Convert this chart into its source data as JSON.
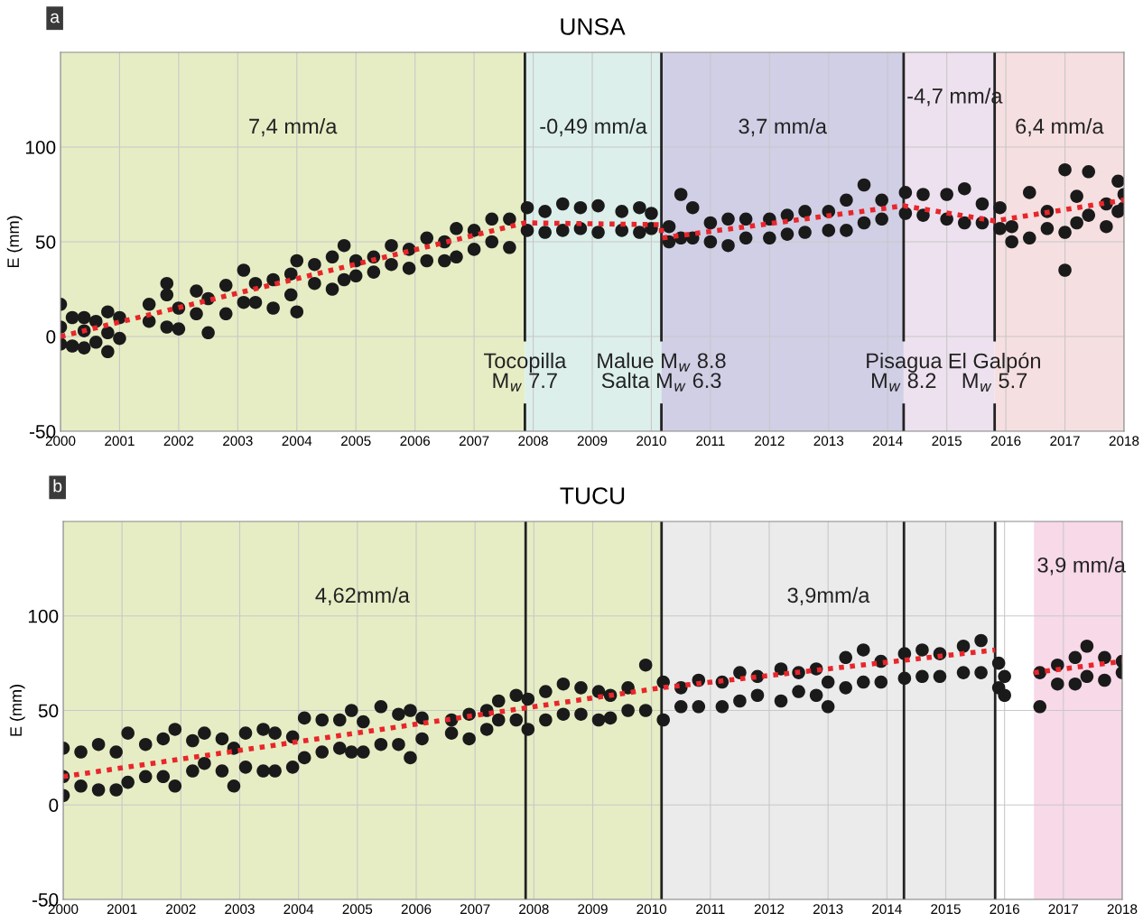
{
  "chart_data": [
    {
      "type": "scatter",
      "title": "UNSA",
      "ylabel": "E (mm)",
      "xlim": [
        2000,
        2018
      ],
      "ylim": [
        -50,
        150
      ],
      "xticks": [
        2000,
        2001,
        2002,
        2003,
        2004,
        2005,
        2006,
        2007,
        2008,
        2009,
        2010,
        2011,
        2012,
        2013,
        2014,
        2015,
        2016,
        2017,
        2018
      ],
      "yticks": [
        -50,
        0,
        50,
        100
      ],
      "grid": true,
      "series": [
        {
          "marker": "circle",
          "color": "#1a1a1a",
          "x": [
            2000.0,
            2000.0,
            2000.0,
            2000.2,
            2000.2,
            2000.4,
            2000.4,
            2000.4,
            2000.6,
            2000.6,
            2000.8,
            2000.8,
            2000.8,
            2001.0,
            2001.0,
            2001.5,
            2001.5,
            2001.8,
            2001.8,
            2001.8,
            2002.0,
            2002.0,
            2002.3,
            2002.3,
            2002.5,
            2002.5,
            2002.8,
            2002.8,
            2003.1,
            2003.1,
            2003.3,
            2003.3,
            2003.6,
            2003.6,
            2003.9,
            2003.9,
            2004.0,
            2004.0,
            2004.3,
            2004.3,
            2004.6,
            2004.6,
            2004.8,
            2004.8,
            2005.0,
            2005.0,
            2005.3,
            2005.3,
            2005.6,
            2005.6,
            2005.9,
            2005.9,
            2006.2,
            2006.2,
            2006.5,
            2006.5,
            2006.7,
            2006.7,
            2007.0,
            2007.0,
            2007.3,
            2007.3,
            2007.6,
            2007.6,
            2007.9,
            2007.9,
            2008.2,
            2008.2,
            2008.5,
            2008.5,
            2008.8,
            2008.8,
            2009.1,
            2009.1,
            2009.5,
            2009.5,
            2009.8,
            2009.8,
            2010.0,
            2010.0,
            2010.3,
            2010.3,
            2010.5,
            2010.5,
            2010.7,
            2010.7,
            2011.0,
            2011.0,
            2011.3,
            2011.3,
            2011.6,
            2011.6,
            2012.0,
            2012.0,
            2012.3,
            2012.3,
            2012.6,
            2012.6,
            2013.0,
            2013.0,
            2013.3,
            2013.3,
            2013.6,
            2013.6,
            2013.9,
            2013.9,
            2014.3,
            2014.3,
            2014.6,
            2014.6,
            2015.0,
            2015.0,
            2015.3,
            2015.3,
            2015.6,
            2015.6,
            2015.9,
            2015.9,
            2016.1,
            2016.1,
            2016.4,
            2016.4,
            2016.7,
            2016.7,
            2017.0,
            2017.0,
            2017.0,
            2017.2,
            2017.2,
            2017.4,
            2017.4,
            2017.7,
            2017.7,
            2017.9,
            2017.9,
            2018.0,
            2018.0
          ],
          "values": [
            5,
            17,
            -4,
            10,
            -5,
            3,
            10,
            -6,
            8,
            -3,
            13,
            -8,
            2,
            10,
            -1,
            17,
            8,
            22,
            5,
            28,
            15,
            4,
            24,
            12,
            20,
            2,
            27,
            12,
            35,
            18,
            28,
            18,
            30,
            15,
            33,
            22,
            40,
            13,
            38,
            28,
            42,
            25,
            48,
            30,
            40,
            32,
            42,
            34,
            48,
            38,
            46,
            36,
            52,
            40,
            50,
            40,
            57,
            42,
            56,
            46,
            62,
            50,
            62,
            47,
            68,
            56,
            66,
            55,
            70,
            56,
            68,
            57,
            69,
            55,
            66,
            56,
            68,
            55,
            65,
            57,
            58,
            50,
            75,
            52,
            68,
            52,
            60,
            50,
            62,
            48,
            62,
            52,
            62,
            52,
            64,
            54,
            66,
            55,
            66,
            56,
            72,
            56,
            80,
            60,
            72,
            62,
            76,
            65,
            75,
            64,
            75,
            62,
            78,
            60,
            70,
            60,
            68,
            57,
            58,
            50,
            76,
            52,
            66,
            57,
            88,
            55,
            35,
            74,
            60,
            87,
            64,
            70,
            58,
            82,
            66,
            75,
            68
          ]
        },
        {
          "type": "line",
          "line_style": "dotted",
          "color": "#e8262b",
          "x": [
            2000,
            2007.86,
            2010.17,
            2010.17,
            2014.27,
            2015.81,
            2018
          ],
          "values": [
            0,
            60,
            59,
            52,
            69,
            61,
            72
          ]
        }
      ],
      "bands": [
        {
          "axis": "x",
          "from": 2000,
          "to": 2007.86,
          "color": "#e6edc4",
          "label": "7,4 mm/a"
        },
        {
          "axis": "x",
          "from": 2007.86,
          "to": 2010.17,
          "color": "#dcefeb",
          "label": "-0,49 mm/a"
        },
        {
          "axis": "x",
          "from": 2010.17,
          "to": 2014.27,
          "color": "#d0cfe6",
          "label": "3,7 mm/a"
        },
        {
          "axis": "x",
          "from": 2014.27,
          "to": 2015.81,
          "color": "#ede1ef",
          "label": "-4,7 mm/a"
        },
        {
          "axis": "x",
          "from": 2015.81,
          "to": 2018,
          "color": "#f6dfe0",
          "label": "6,4 mm/a"
        }
      ],
      "ref_lines": [
        {
          "axis": "x",
          "value": 2007.86,
          "label": "Tocopilla\nM$_{w}$ 7.7",
          "color": "#222222"
        },
        {
          "axis": "x",
          "value": 2010.17,
          "label": "Malue M$_{w}$ 8.8\nSalta M$_{w}$ 6.3",
          "color": "#222222"
        },
        {
          "axis": "x",
          "value": 2014.27,
          "label": "Pisagua\nM$_{w}$ 8.2",
          "color": "#222222"
        },
        {
          "axis": "x",
          "value": 2015.81,
          "label": "El Galpón\nM$_{w}$ 5.7",
          "color": "#222222"
        }
      ],
      "annotations": [
        "a"
      ]
    },
    {
      "type": "scatter",
      "title": "TUCU",
      "ylabel": "E (mm)",
      "xlim": [
        2000,
        2018
      ],
      "ylim": [
        -50,
        150
      ],
      "xticks": [
        2000,
        2001,
        2002,
        2003,
        2004,
        2005,
        2006,
        2007,
        2008,
        2009,
        2010,
        2011,
        2012,
        2013,
        2014,
        2015,
        2016,
        2017,
        2018
      ],
      "yticks": [
        -50,
        0,
        50,
        100
      ],
      "grid": true,
      "series": [
        {
          "marker": "circle",
          "color": "#1a1a1a",
          "x": [
            2000.0,
            2000.0,
            2000.0,
            2000.3,
            2000.3,
            2000.6,
            2000.6,
            2000.9,
            2000.9,
            2001.1,
            2001.1,
            2001.4,
            2001.4,
            2001.7,
            2001.7,
            2001.9,
            2001.9,
            2002.2,
            2002.2,
            2002.4,
            2002.4,
            2002.7,
            2002.7,
            2002.9,
            2002.9,
            2003.1,
            2003.1,
            2003.4,
            2003.4,
            2003.6,
            2003.6,
            2003.9,
            2003.9,
            2004.1,
            2004.1,
            2004.4,
            2004.4,
            2004.7,
            2004.7,
            2004.9,
            2004.9,
            2005.1,
            2005.1,
            2005.4,
            2005.4,
            2005.7,
            2005.7,
            2005.9,
            2005.9,
            2006.1,
            2006.1,
            2006.6,
            2006.6,
            2006.9,
            2006.9,
            2007.2,
            2007.2,
            2007.4,
            2007.4,
            2007.7,
            2007.7,
            2007.9,
            2007.9,
            2008.2,
            2008.2,
            2008.5,
            2008.5,
            2008.8,
            2008.8,
            2009.1,
            2009.1,
            2009.3,
            2009.3,
            2009.6,
            2009.6,
            2009.9,
            2009.9,
            2010.2,
            2010.2,
            2010.5,
            2010.5,
            2010.8,
            2010.8,
            2011.2,
            2011.2,
            2011.5,
            2011.5,
            2011.8,
            2011.8,
            2012.2,
            2012.2,
            2012.5,
            2012.5,
            2012.8,
            2012.8,
            2013.0,
            2013.0,
            2013.3,
            2013.3,
            2013.6,
            2013.6,
            2013.9,
            2013.9,
            2014.3,
            2014.3,
            2014.6,
            2014.6,
            2014.9,
            2014.9,
            2015.3,
            2015.3,
            2015.6,
            2015.6,
            2015.9,
            2015.9,
            2016.0,
            2016.0,
            2016.6,
            2016.6,
            2016.9,
            2016.9,
            2017.2,
            2017.2,
            2017.4,
            2017.4,
            2017.7,
            2017.7,
            2018.0,
            2018.0
          ],
          "values": [
            5,
            30,
            15,
            28,
            10,
            32,
            8,
            28,
            8,
            38,
            12,
            32,
            15,
            35,
            15,
            40,
            10,
            34,
            18,
            38,
            22,
            35,
            18,
            30,
            10,
            38,
            20,
            40,
            18,
            38,
            18,
            36,
            20,
            46,
            25,
            45,
            28,
            45,
            30,
            50,
            28,
            44,
            28,
            52,
            32,
            48,
            32,
            50,
            25,
            46,
            35,
            45,
            38,
            48,
            35,
            50,
            40,
            55,
            45,
            58,
            45,
            56,
            40,
            60,
            45,
            64,
            48,
            62,
            48,
            60,
            45,
            58,
            46,
            62,
            50,
            74,
            50,
            65,
            45,
            62,
            52,
            66,
            52,
            65,
            52,
            70,
            55,
            68,
            58,
            72,
            55,
            70,
            60,
            72,
            58,
            65,
            52,
            78,
            62,
            82,
            65,
            76,
            65,
            80,
            67,
            82,
            68,
            80,
            68,
            84,
            70,
            87,
            70,
            75,
            62,
            68,
            58,
            70,
            52,
            74,
            64,
            78,
            64,
            84,
            68,
            78,
            66,
            76,
            70
          ]
        },
        {
          "type": "line",
          "line_style": "dotted",
          "color": "#e8262b",
          "x": [
            2000,
            2010.17,
            2015.84
          ],
          "values": [
            15,
            62,
            82
          ]
        },
        {
          "type": "line",
          "line_style": "dotted",
          "color": "#e8262b",
          "x": [
            2016.5,
            2018
          ],
          "values": [
            70,
            76
          ]
        }
      ],
      "bands": [
        {
          "axis": "x",
          "from": 2000,
          "to": 2010.17,
          "color": "#e6edc4",
          "label": "4,62mm/a"
        },
        {
          "axis": "x",
          "from": 2010.17,
          "to": 2015.84,
          "color": "#ebebeb",
          "label": "3,9mm/a"
        },
        {
          "axis": "x",
          "from": 2016.5,
          "to": 2018,
          "color": "#f7d9e8",
          "label": "3,9 mm/a"
        }
      ],
      "ref_lines": [
        {
          "axis": "x",
          "value": 2007.86,
          "color": "#222222"
        },
        {
          "axis": "x",
          "value": 2010.17,
          "color": "#222222"
        },
        {
          "axis": "x",
          "value": 2014.29,
          "color": "#222222"
        },
        {
          "axis": "x",
          "value": 2015.84,
          "color": "#222222"
        }
      ],
      "annotations": [
        "b"
      ]
    }
  ]
}
